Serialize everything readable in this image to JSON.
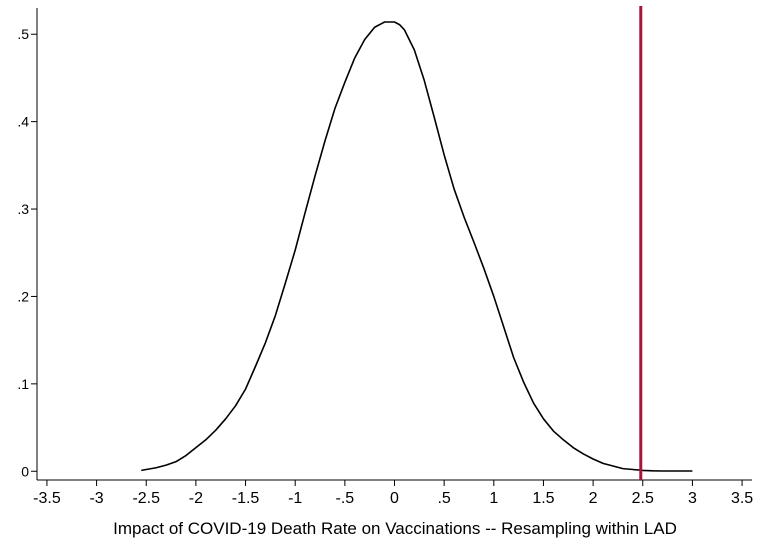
{
  "chart_data": {
    "type": "line",
    "title": "",
    "xlabel": "Impact of COVID-19 Death Rate on Vaccinations -- Resampling within LAD",
    "ylabel": "",
    "xlim": [
      -3.6,
      3.6
    ],
    "ylim": [
      -0.01,
      0.53
    ],
    "grid": false,
    "legend": "none",
    "x_ticks": [
      -3.5,
      -3,
      -2.5,
      -2,
      -1.5,
      -1,
      -0.5,
      0,
      0.5,
      1,
      1.5,
      2,
      2.5,
      3,
      3.5
    ],
    "x_tick_labels": [
      "-3.5",
      "-3",
      "-2.5",
      "-2",
      "-1.5",
      "-1",
      "-.5",
      "0",
      ".5",
      "1",
      "1.5",
      "2",
      "2.5",
      "3",
      "3.5"
    ],
    "y_ticks": [
      0,
      0.1,
      0.2,
      0.3,
      0.4,
      0.5
    ],
    "y_tick_labels": [
      "0",
      ".1",
      ".2",
      ".3",
      ".4",
      ".5"
    ],
    "series": [
      {
        "color": "#000000",
        "x": [
          -2.55,
          -2.4,
          -2.3,
          -2.2,
          -2.1,
          -2.0,
          -1.9,
          -1.8,
          -1.7,
          -1.6,
          -1.5,
          -1.4,
          -1.3,
          -1.2,
          -1.1,
          -1.0,
          -0.9,
          -0.8,
          -0.7,
          -0.6,
          -0.5,
          -0.4,
          -0.3,
          -0.2,
          -0.1,
          0.0,
          0.05,
          0.1,
          0.2,
          0.3,
          0.4,
          0.5,
          0.6,
          0.7,
          0.8,
          0.9,
          1.0,
          1.1,
          1.2,
          1.3,
          1.4,
          1.5,
          1.6,
          1.7,
          1.8,
          1.9,
          2.0,
          2.1,
          2.2,
          2.3,
          2.4,
          2.5,
          2.6,
          2.7,
          2.8,
          3.0
        ],
        "y": [
          0.001,
          0.004,
          0.007,
          0.011,
          0.018,
          0.027,
          0.036,
          0.047,
          0.06,
          0.075,
          0.094,
          0.12,
          0.147,
          0.178,
          0.215,
          0.253,
          0.296,
          0.338,
          0.378,
          0.415,
          0.445,
          0.473,
          0.494,
          0.508,
          0.514,
          0.514,
          0.511,
          0.505,
          0.482,
          0.447,
          0.405,
          0.362,
          0.323,
          0.291,
          0.262,
          0.232,
          0.2,
          0.165,
          0.13,
          0.102,
          0.078,
          0.06,
          0.046,
          0.036,
          0.027,
          0.02,
          0.014,
          0.009,
          0.006,
          0.003,
          0.002,
          0.001,
          0.0005,
          0.0003,
          0.0003,
          0.0003
        ]
      }
    ],
    "reference_line": {
      "x": 2.48,
      "color": "#a8153a"
    }
  }
}
